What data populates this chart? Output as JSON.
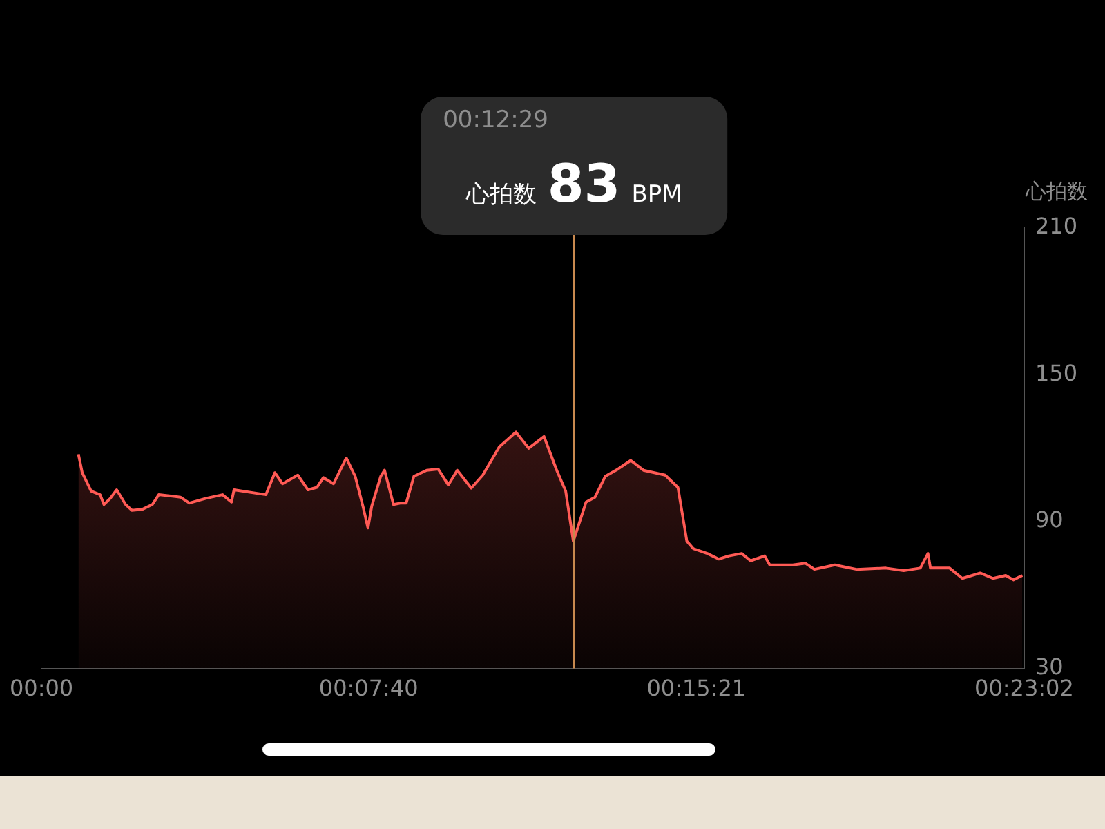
{
  "chart_data": {
    "type": "area",
    "ylabel": "心拍数",
    "marker": "none",
    "xlim": [
      0,
      0.38389
    ],
    "xticks": [
      {
        "value": 0,
        "label": "00:00"
      },
      {
        "value": 0.12778,
        "label": "00:07:40"
      },
      {
        "value": 0.25583,
        "label": "00:15:21"
      },
      {
        "value": 0.38389,
        "label": "00:23:02"
      }
    ],
    "ylim": [
      30,
      210
    ],
    "yticks": [
      30,
      90,
      150,
      210
    ],
    "ref_lines": [
      {
        "axis": "x",
        "value": 0.20806,
        "color": "#c8894f"
      }
    ],
    "annotations": [
      "00:12:29",
      "心拍数 83 BPM"
    ],
    "series": [
      {
        "color": "#ff5a55",
        "x": [
          0.01445,
          0.01594,
          0.01943,
          0.02292,
          0.02442,
          0.02691,
          0.0294,
          0.03289,
          0.03538,
          0.03936,
          0.04335,
          0.04584,
          0.05431,
          0.0578,
          0.06428,
          0.07076,
          0.07424,
          0.07524,
          0.0877,
          0.09119,
          0.09417,
          0.10015,
          0.10414,
          0.10763,
          0.11012,
          0.11411,
          0.11909,
          0.12258,
          0.12557,
          0.12756,
          0.12905,
          0.13254,
          0.13404,
          0.13753,
          0.14051,
          0.14251,
          0.1455,
          0.15048,
          0.15497,
          0.15895,
          0.16244,
          0.16792,
          0.1724,
          0.17888,
          0.18536,
          0.19034,
          0.19632,
          0.2013,
          0.20479,
          0.20778,
          0.21277,
          0.21625,
          0.22024,
          0.22522,
          0.23021,
          0.23519,
          0.24366,
          0.24864,
          0.25213,
          0.25462,
          0.2601,
          0.26459,
          0.26857,
          0.27356,
          0.27704,
          0.28252,
          0.28452,
          0.29349,
          0.29847,
          0.30196,
          0.30993,
          0.3184,
          0.32986,
          0.33684,
          0.34332,
          0.34631,
          0.3473,
          0.35478,
          0.35976,
          0.36674,
          0.37172,
          0.3767,
          0.37969,
          0.38318
        ],
        "values": [
          117.6,
          110,
          102.5,
          101,
          97,
          99.5,
          103,
          97,
          94.6,
          95,
          97,
          101,
          100,
          97.6,
          99.5,
          101,
          98,
          103,
          101,
          110,
          105.5,
          109,
          103,
          104,
          108,
          105.5,
          116,
          108.5,
          96.4,
          87.4,
          96.4,
          108.5,
          111,
          97,
          97.6,
          97.6,
          108.5,
          111,
          111.5,
          105,
          111,
          103.7,
          109,
          120.6,
          126.6,
          120,
          124.8,
          111,
          102.5,
          82,
          98,
          100,
          108.5,
          111.5,
          115,
          111,
          109,
          104,
          82,
          79,
          77,
          74.7,
          76,
          77,
          74,
          76,
          72.3,
          72.3,
          73,
          70.5,
          72.3,
          70.5,
          71,
          70,
          71,
          77,
          71,
          71,
          66.8,
          69,
          66.8,
          68,
          66.2,
          68
        ]
      }
    ]
  }
}
